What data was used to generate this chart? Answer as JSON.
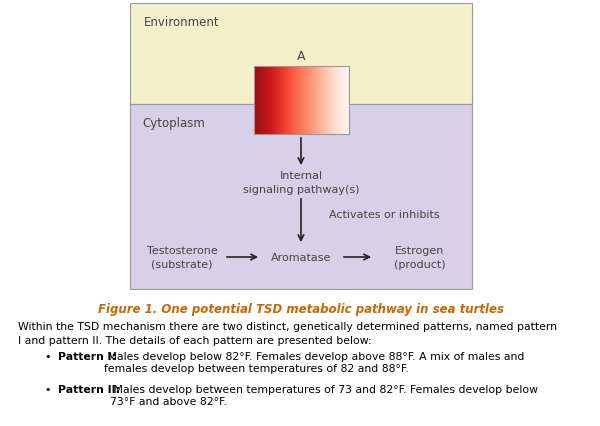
{
  "env_color": "#f5f0cc",
  "cyto_color": "#d8cfe8",
  "border_color": "#999999",
  "arrow_color": "#222222",
  "text_color_dark": "#444444",
  "orange_color": "#cc6600",
  "env_label": "Environment",
  "cyto_label": "Cytoplasm",
  "box_label": "A",
  "internal_label": "Internal\nsignaling pathway(s)",
  "activates_label": "Activates or inhibits",
  "testosterone_label": "Testosterone\n(substrate)",
  "aromatase_label": "Aromatase",
  "estrogen_label": "Estrogen\n(product)",
  "figure_caption": "Figure 1. One potential TSD metabolic pathway in sea turtles",
  "body_intro": "Within the TSD mechanism there are two distinct, genetically determined patterns, named pattern\nI and pattern II. The details of each pattern are presented below:",
  "bullet1_bold": "Pattern I:",
  "bullet1_rest": " Males develop below 82°F. Females develop above 88°F. A mix of males and\nfemales develop between temperatures of 82 and 88°F.",
  "bullet2_bold": "Pattern II:",
  "bullet2_rest": " Males develop between temperatures of 73 and 82°F. Females develop below\n73°F and above 82°F.",
  "fig_width": 6.0,
  "fig_height": 4.27,
  "dpi": 100
}
